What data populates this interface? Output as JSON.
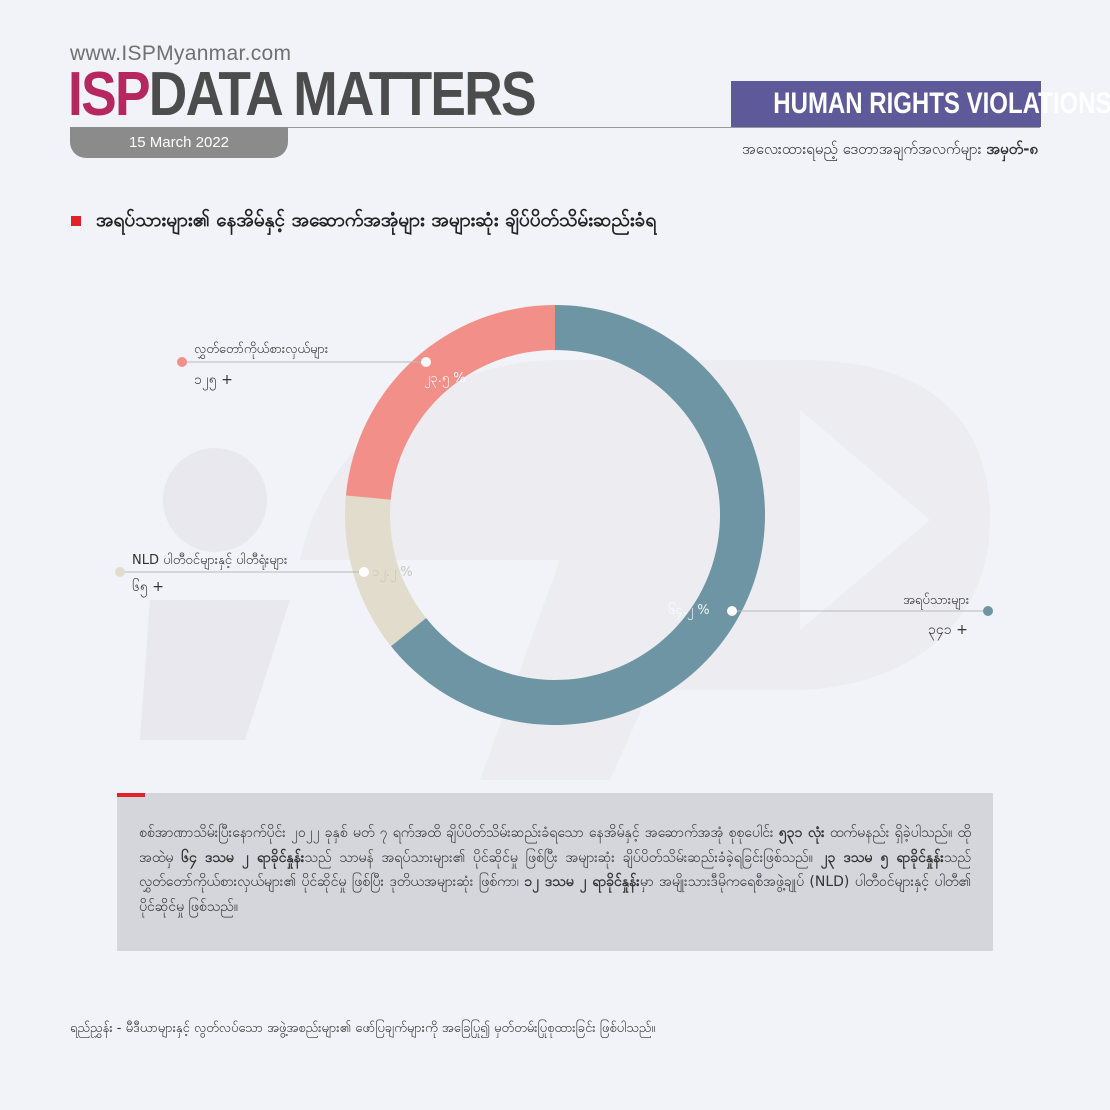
{
  "header": {
    "website": "www.ISPMyanmar.com",
    "brand_isp": "ISP",
    "brand_rest": "DATA MATTERS",
    "date": "15 March 2022",
    "topic": "HUMAN RIGHTS VIOLATIONS",
    "kicker_prefix": "အလေးထားရမည့် ဒေတာအချက်အလက်များ ",
    "kicker_number": "အမှတ်-၈"
  },
  "title": "အရပ်သားများ၏ နေအိမ်နှင့် အဆောက်အအုံများ အများဆုံး ချိပ်ပိတ်သိမ်းဆည်းခံရ",
  "colors": {
    "accent_red": "#e0222a",
    "brand_magenta": "#b5275e",
    "topic_purple": "#5e5a9a",
    "civilians": "#6e95a3",
    "nld": "#e2dccd",
    "elected_representatives": "#f28f88"
  },
  "chart_data": {
    "type": "pie",
    "donut": true,
    "title": "အရပ်သားများ၏ နေအိမ်နှင့် အဆောက်အအုံများ အများဆုံး ချိပ်ပိတ်သိမ်းဆည်းခံရ",
    "slices": [
      {
        "label": "အရပ်သားများ",
        "count": "၃၄၁ +",
        "percent_label": "၆၄.၂ %",
        "percent": 64.2,
        "color": "#6e95a3"
      },
      {
        "label": "NLD ပါတီဝင်များနှင့် ပါတီရုံးများ",
        "count": "၆၅ +",
        "percent_label": "၁၂.၂ %",
        "percent": 12.2,
        "color": "#e2dccd"
      },
      {
        "label": "လွှတ်တော်ကိုယ်စားလှယ်များ",
        "count": "၁၂၅ +",
        "percent_label": "၂၃.၅ %",
        "percent": 23.5,
        "color": "#f28f88"
      }
    ]
  },
  "summary": {
    "s1": "စစ်အာဏာသိမ်းပြီးနောက်ပိုင်း ၂၀၂၂ ခုနှစ် မတ် ၇ ရက်အထိ ချိပ်ပိတ်သိမ်းဆည်းခံရသော နေအိမ်နှင့် အဆောက်အအုံ စုစုပေါင်း ",
    "b1": "၅၃၁ လုံး",
    "s2": " ထက်မနည်း ရှိခဲ့ပါသည်။ ထိုအထဲမှ ",
    "b2": "၆၄ ဒသမ ၂ ရာခိုင်နှုန်း",
    "s3": "သည် သာမန် အရပ်သားများ၏ ပိုင်ဆိုင်မှု ဖြစ်ပြီး အများဆုံး ချိပ်ပိတ်သိမ်းဆည်းခံခဲ့ရခြင်းဖြစ်သည်။ ",
    "b3": "၂၃ ဒသမ ၅ ရာခိုင်နှုန်း",
    "s4": "သည် လွှတ်တော်ကိုယ်စားလှယ်များ၏ ပိုင်ဆိုင်မှု ဖြစ်ပြီး ဒုတိယအများဆုံး ဖြစ်ကာ၊ ",
    "b4": "၁၂ ဒသမ ၂ ရာခိုင်နှုန်း",
    "s5": "မှာ အမျိုးသားဒီမိုကရေစီအဖွဲ့ချုပ် (NLD) ပါတီဝင်များနှင့် ပါတီ၏ ပိုင်ဆိုင်မှု ဖြစ်သည်။"
  },
  "source": "ရည်ညွှန်း - မီဒီယာများနှင့် လွတ်လပ်သော အဖွဲ့အစည်းများ၏ ဖော်ပြချက်များကို အခြေပြု၍ မှတ်တမ်းပြုစုထားခြင်း ဖြစ်ပါသည်။"
}
